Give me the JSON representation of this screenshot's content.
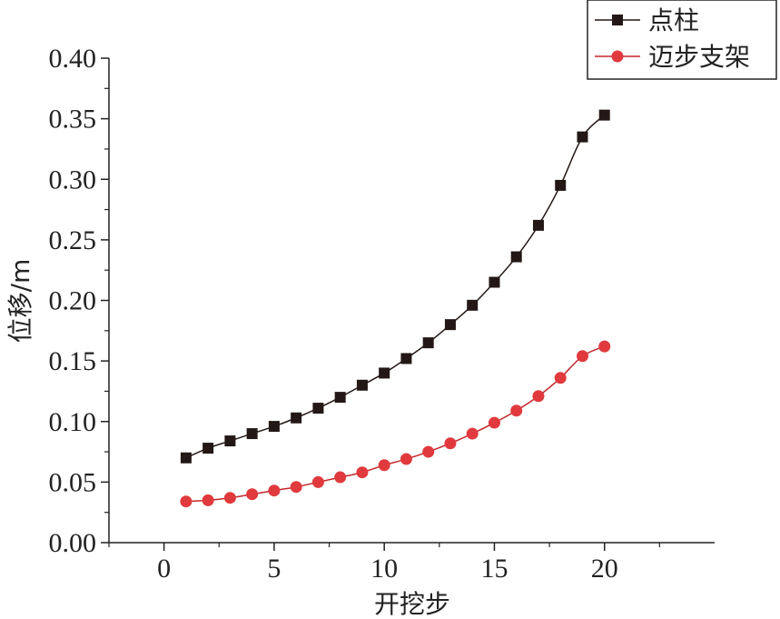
{
  "chart_data": {
    "type": "line",
    "xlabel": "开挖步",
    "ylabel": "位移/m",
    "xlim": [
      -2.5,
      25
    ],
    "ylim": [
      0,
      0.4
    ],
    "xticks": [
      0,
      5,
      10,
      15,
      20
    ],
    "xtick_labels": [
      "0",
      "5",
      "10",
      "15",
      "20"
    ],
    "yticks": [
      0,
      0.05,
      0.1,
      0.15,
      0.2,
      0.25,
      0.3,
      0.35,
      0.4
    ],
    "ytick_labels": [
      "0.00",
      "0.05",
      "0.10",
      "0.15",
      "0.20",
      "0.25",
      "0.30",
      "0.35",
      "0.40"
    ],
    "grid": false,
    "legend_position": "top-right",
    "x": [
      1,
      2,
      3,
      4,
      5,
      6,
      7,
      8,
      9,
      10,
      11,
      12,
      13,
      14,
      15,
      16,
      17,
      18,
      19,
      20
    ],
    "series": [
      {
        "name": "点柱",
        "marker": "square",
        "color": "#231815",
        "marker_color": "#231815",
        "values": [
          0.07,
          0.078,
          0.084,
          0.09,
          0.096,
          0.103,
          0.111,
          0.12,
          0.13,
          0.14,
          0.152,
          0.165,
          0.18,
          0.196,
          0.215,
          0.236,
          0.262,
          0.295,
          0.335,
          0.353
        ]
      },
      {
        "name": "迈步支架",
        "marker": "circle",
        "color": "#c3272b",
        "marker_color": "#e03a3e",
        "values": [
          0.034,
          0.035,
          0.037,
          0.04,
          0.043,
          0.046,
          0.05,
          0.054,
          0.058,
          0.064,
          0.069,
          0.075,
          0.082,
          0.09,
          0.099,
          0.109,
          0.121,
          0.136,
          0.154,
          0.162
        ]
      }
    ]
  }
}
